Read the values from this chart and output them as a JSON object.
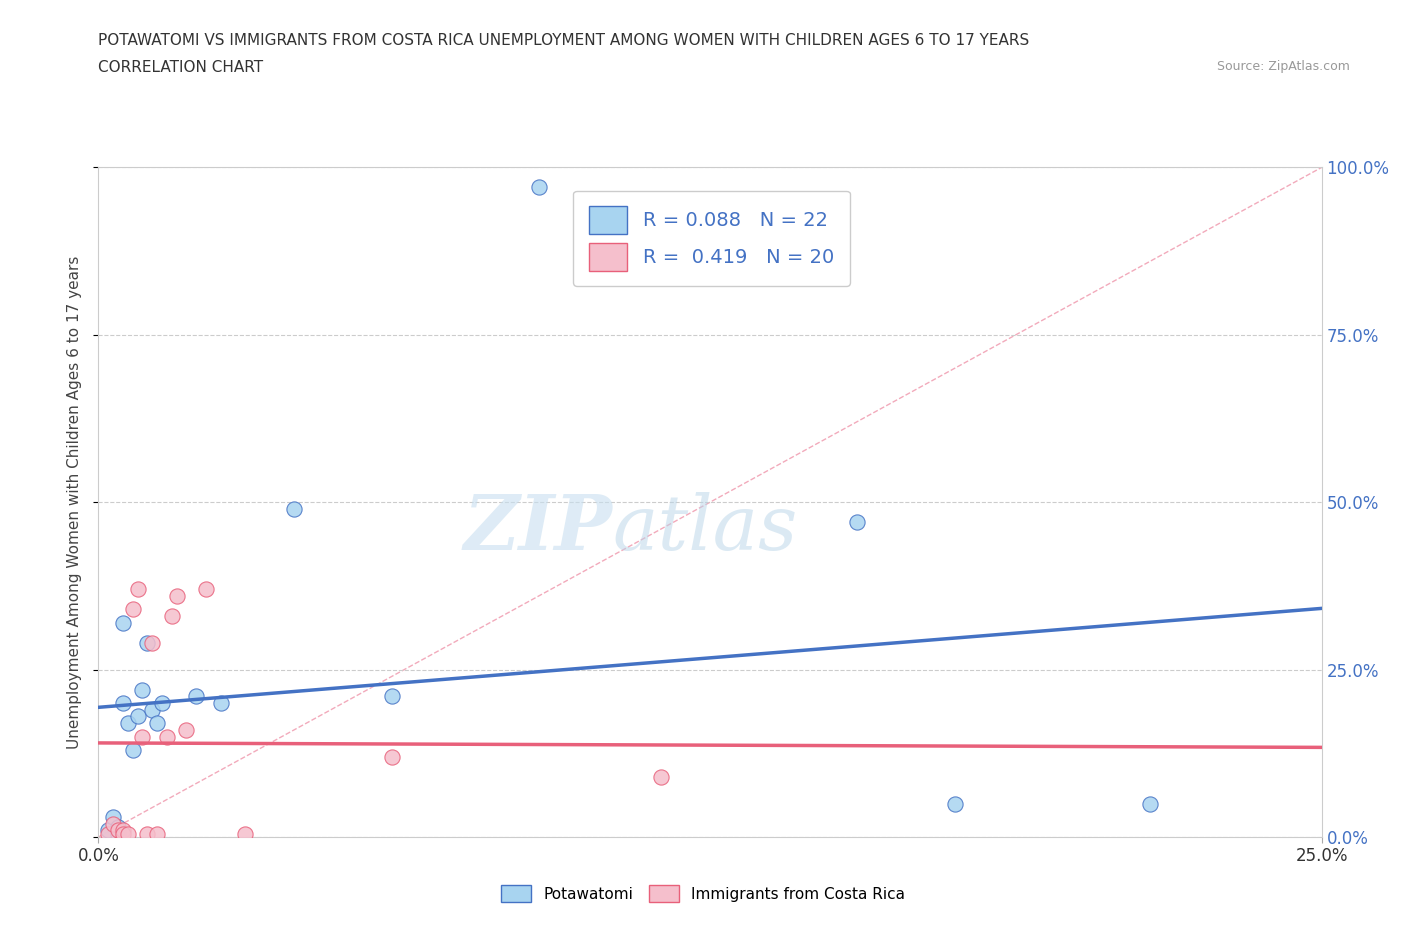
{
  "title_line1": "POTAWATOMI VS IMMIGRANTS FROM COSTA RICA UNEMPLOYMENT AMONG WOMEN WITH CHILDREN AGES 6 TO 17 YEARS",
  "title_line2": "CORRELATION CHART",
  "source": "Source: ZipAtlas.com",
  "ylabel": "Unemployment Among Women with Children Ages 6 to 17 years",
  "xmin": 0.0,
  "xmax": 0.25,
  "ymin": 0.0,
  "ymax": 1.0,
  "ytick_values": [
    0.0,
    0.25,
    0.5,
    0.75,
    1.0
  ],
  "xtick_values": [
    0.0,
    0.25
  ],
  "potawatomi_color": "#A8D4F0",
  "costa_rica_color": "#F5BFCC",
  "regression_blue": "#4472C4",
  "regression_pink": "#E8607A",
  "diagonal_color": "#F0C0CC",
  "R_potawatomi": 0.088,
  "N_potawatomi": 22,
  "R_costa_rica": 0.419,
  "N_costa_rica": 20,
  "potawatomi_x": [
    0.002,
    0.003,
    0.004,
    0.004,
    0.005,
    0.005,
    0.006,
    0.007,
    0.008,
    0.009,
    0.01,
    0.011,
    0.012,
    0.013,
    0.02,
    0.025,
    0.04,
    0.06,
    0.09,
    0.155,
    0.175,
    0.215
  ],
  "potawatomi_y": [
    0.01,
    0.03,
    0.005,
    0.015,
    0.32,
    0.2,
    0.17,
    0.13,
    0.18,
    0.22,
    0.29,
    0.19,
    0.17,
    0.2,
    0.21,
    0.2,
    0.49,
    0.21,
    0.97,
    0.47,
    0.05,
    0.05
  ],
  "costa_rica_x": [
    0.002,
    0.003,
    0.004,
    0.005,
    0.005,
    0.006,
    0.007,
    0.008,
    0.009,
    0.01,
    0.011,
    0.012,
    0.014,
    0.015,
    0.016,
    0.018,
    0.022,
    0.03,
    0.06,
    0.115
  ],
  "costa_rica_y": [
    0.005,
    0.02,
    0.01,
    0.01,
    0.005,
    0.005,
    0.34,
    0.37,
    0.15,
    0.005,
    0.29,
    0.005,
    0.15,
    0.33,
    0.36,
    0.16,
    0.37,
    0.005,
    0.12,
    0.09
  ],
  "watermark_zip": "ZIP",
  "watermark_atlas": "atlas",
  "bg_color": "#FFFFFF",
  "plot_bg_color": "#FFFFFF"
}
